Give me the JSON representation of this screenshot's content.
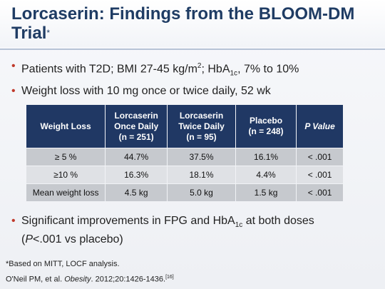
{
  "title": {
    "text": "Lorcaserin: Findings from the BLOOM-DM Trial",
    "mark": "*"
  },
  "bullets": [
    {
      "pre": "Patients with T2D; BMI 27-45 kg/m",
      "sup": "2",
      "mid": "; HbA",
      "sub": "1c",
      "post": ", 7% to 10%"
    },
    {
      "text": "Weight loss with 10 mg once or twice daily, 52 wk"
    }
  ],
  "table": {
    "headers": [
      {
        "lines": [
          "Weight Loss"
        ]
      },
      {
        "lines": [
          "Lorcaserin",
          "Once Daily",
          "(n = 251)"
        ]
      },
      {
        "lines": [
          "Lorcaserin",
          "Twice Daily",
          "(n = 95)"
        ]
      },
      {
        "lines": [
          "Placebo",
          "(n = 248)"
        ]
      },
      {
        "lines": [
          "P Value"
        ]
      }
    ],
    "rows": [
      [
        "≥ 5 %",
        "44.7%",
        "37.5%",
        "16.1%",
        "< .001"
      ],
      [
        "≥10 %",
        "16.3%",
        "18.1%",
        "4.4%",
        "< .001"
      ],
      [
        "Mean weight loss",
        "4.5 kg",
        "5.0 kg",
        "1.5 kg",
        "< .001"
      ]
    ]
  },
  "bottom_bullet": {
    "pre": "Significant improvements in FPG and HbA",
    "sub": "1c",
    "post": " at both doses",
    "line2_italic": "P",
    "line2_rest": "<.001 vs placebo)",
    "line2_open": "("
  },
  "footnote": "*Based on MITT, LOCF analysis.",
  "reference": {
    "pre": "O'Neil PM, et al. ",
    "journal": "Obesity",
    "post": ". 2012;20:1426-1436.",
    "cite": "[16]"
  }
}
